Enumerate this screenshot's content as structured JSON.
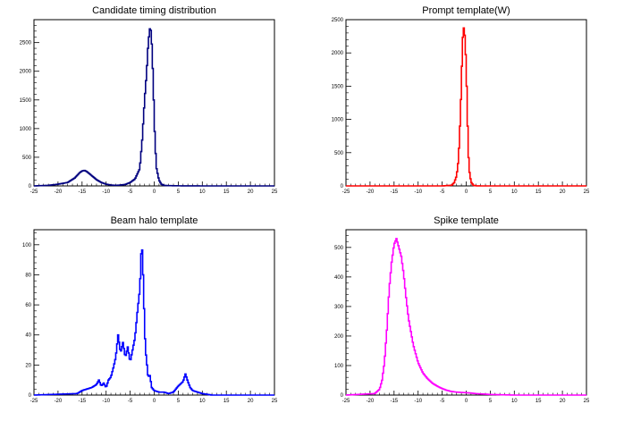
{
  "chart_data": [
    {
      "type": "histogram",
      "title": "Candidate timing distribution",
      "xlabel": "",
      "ylabel": "",
      "color": "#00007f",
      "xlim": [
        -25,
        25
      ],
      "ylim": [
        0,
        2900
      ],
      "x_ticks": [
        -25,
        -20,
        -15,
        -10,
        -5,
        0,
        5,
        10,
        15,
        20,
        25
      ],
      "y_ticks": [
        0,
        500,
        1000,
        1500,
        2000,
        2500
      ],
      "x": [
        -25,
        -22,
        -20,
        -18,
        -16.5,
        -15.5,
        -15,
        -14.5,
        -14,
        -13,
        -12,
        -11,
        -10,
        -9,
        -8,
        -7,
        -6,
        -5,
        -4,
        -3,
        -2.5,
        -2,
        -1.6,
        -1.3,
        -1,
        -0.8,
        -0.6,
        -0.4,
        -0.2,
        0,
        0.2,
        0.5,
        1,
        1.5,
        2,
        3,
        5,
        10,
        15,
        20,
        25
      ],
      "y": [
        0,
        10,
        30,
        60,
        140,
        230,
        260,
        270,
        250,
        180,
        110,
        60,
        30,
        15,
        10,
        15,
        25,
        60,
        120,
        300,
        800,
        1500,
        1950,
        2400,
        2700,
        2780,
        2650,
        2300,
        1800,
        1200,
        700,
        300,
        100,
        30,
        10,
        5,
        2,
        0,
        0,
        0,
        0
      ]
    },
    {
      "type": "histogram",
      "title": "Prompt template(W)",
      "xlabel": "",
      "ylabel": "",
      "color": "#ff0000",
      "xlim": [
        -25,
        25
      ],
      "ylim": [
        0,
        2500
      ],
      "x_ticks": [
        -25,
        -20,
        -15,
        -10,
        -5,
        0,
        5,
        10,
        15,
        20,
        25
      ],
      "y_ticks": [
        0,
        500,
        1000,
        1500,
        2000,
        2500
      ],
      "x": [
        -25,
        -5,
        -3,
        -2.5,
        -2,
        -1.6,
        -1.3,
        -1,
        -0.8,
        -0.6,
        -0.4,
        -0.2,
        0,
        0.2,
        0.4,
        0.6,
        1,
        1.5,
        2,
        3,
        25
      ],
      "y": [
        0,
        0,
        10,
        50,
        150,
        400,
        900,
        1500,
        2100,
        2370,
        2380,
        2150,
        1800,
        1200,
        600,
        250,
        60,
        10,
        2,
        0,
        0
      ]
    },
    {
      "type": "histogram",
      "title": "Beam halo template",
      "xlabel": "",
      "ylabel": "",
      "color": "#0000ff",
      "xlim": [
        -25,
        25
      ],
      "ylim": [
        0,
        110
      ],
      "x_ticks": [
        -25,
        -20,
        -15,
        -10,
        -5,
        0,
        5,
        10,
        15,
        20,
        25
      ],
      "y_ticks": [
        0,
        20,
        40,
        60,
        80,
        100
      ],
      "x": [
        -25,
        -16,
        -15,
        -14,
        -13,
        -12,
        -11.5,
        -11,
        -10.5,
        -10,
        -9.5,
        -9,
        -8.5,
        -8,
        -7.5,
        -7,
        -6.5,
        -6,
        -5.5,
        -5,
        -4.5,
        -4,
        -3.5,
        -3,
        -2.8,
        -2.6,
        -2.4,
        -2.2,
        -2,
        -1.8,
        -1.5,
        -1.2,
        -1,
        -0.5,
        0,
        1,
        2,
        3,
        4,
        5,
        6,
        6.5,
        7,
        7.5,
        8,
        9,
        10,
        12,
        25
      ],
      "y": [
        0,
        1,
        3,
        4,
        5,
        7,
        10,
        6,
        8,
        5,
        10,
        12,
        18,
        25,
        40,
        28,
        35,
        25,
        32,
        22,
        30,
        38,
        55,
        70,
        85,
        103,
        90,
        70,
        45,
        30,
        20,
        10,
        15,
        5,
        3,
        2,
        2,
        1,
        2,
        6,
        9,
        14,
        9,
        5,
        3,
        2,
        1,
        0,
        0
      ]
    },
    {
      "type": "histogram",
      "title": "Spike template",
      "xlabel": "",
      "ylabel": "",
      "color": "#ff00ff",
      "xlim": [
        -25,
        25
      ],
      "ylim": [
        0,
        560
      ],
      "x_ticks": [
        -25,
        -20,
        -15,
        -10,
        -5,
        0,
        5,
        10,
        15,
        20,
        25
      ],
      "y_ticks": [
        0,
        100,
        200,
        300,
        400,
        500
      ],
      "x": [
        -25,
        -19,
        -18,
        -17.5,
        -17,
        -16.5,
        -16,
        -15.5,
        -15,
        -14.5,
        -14,
        -13.5,
        -13,
        -12.5,
        -12,
        -11,
        -10,
        -9,
        -8,
        -7,
        -6,
        -5,
        -4,
        -3,
        -2,
        -1,
        0,
        1,
        2,
        3,
        5,
        10,
        25
      ],
      "y": [
        0,
        5,
        20,
        50,
        110,
        220,
        360,
        450,
        510,
        530,
        500,
        470,
        410,
        330,
        260,
        170,
        110,
        75,
        55,
        40,
        30,
        22,
        16,
        12,
        10,
        9,
        8,
        7,
        5,
        4,
        2,
        0,
        0
      ]
    }
  ]
}
